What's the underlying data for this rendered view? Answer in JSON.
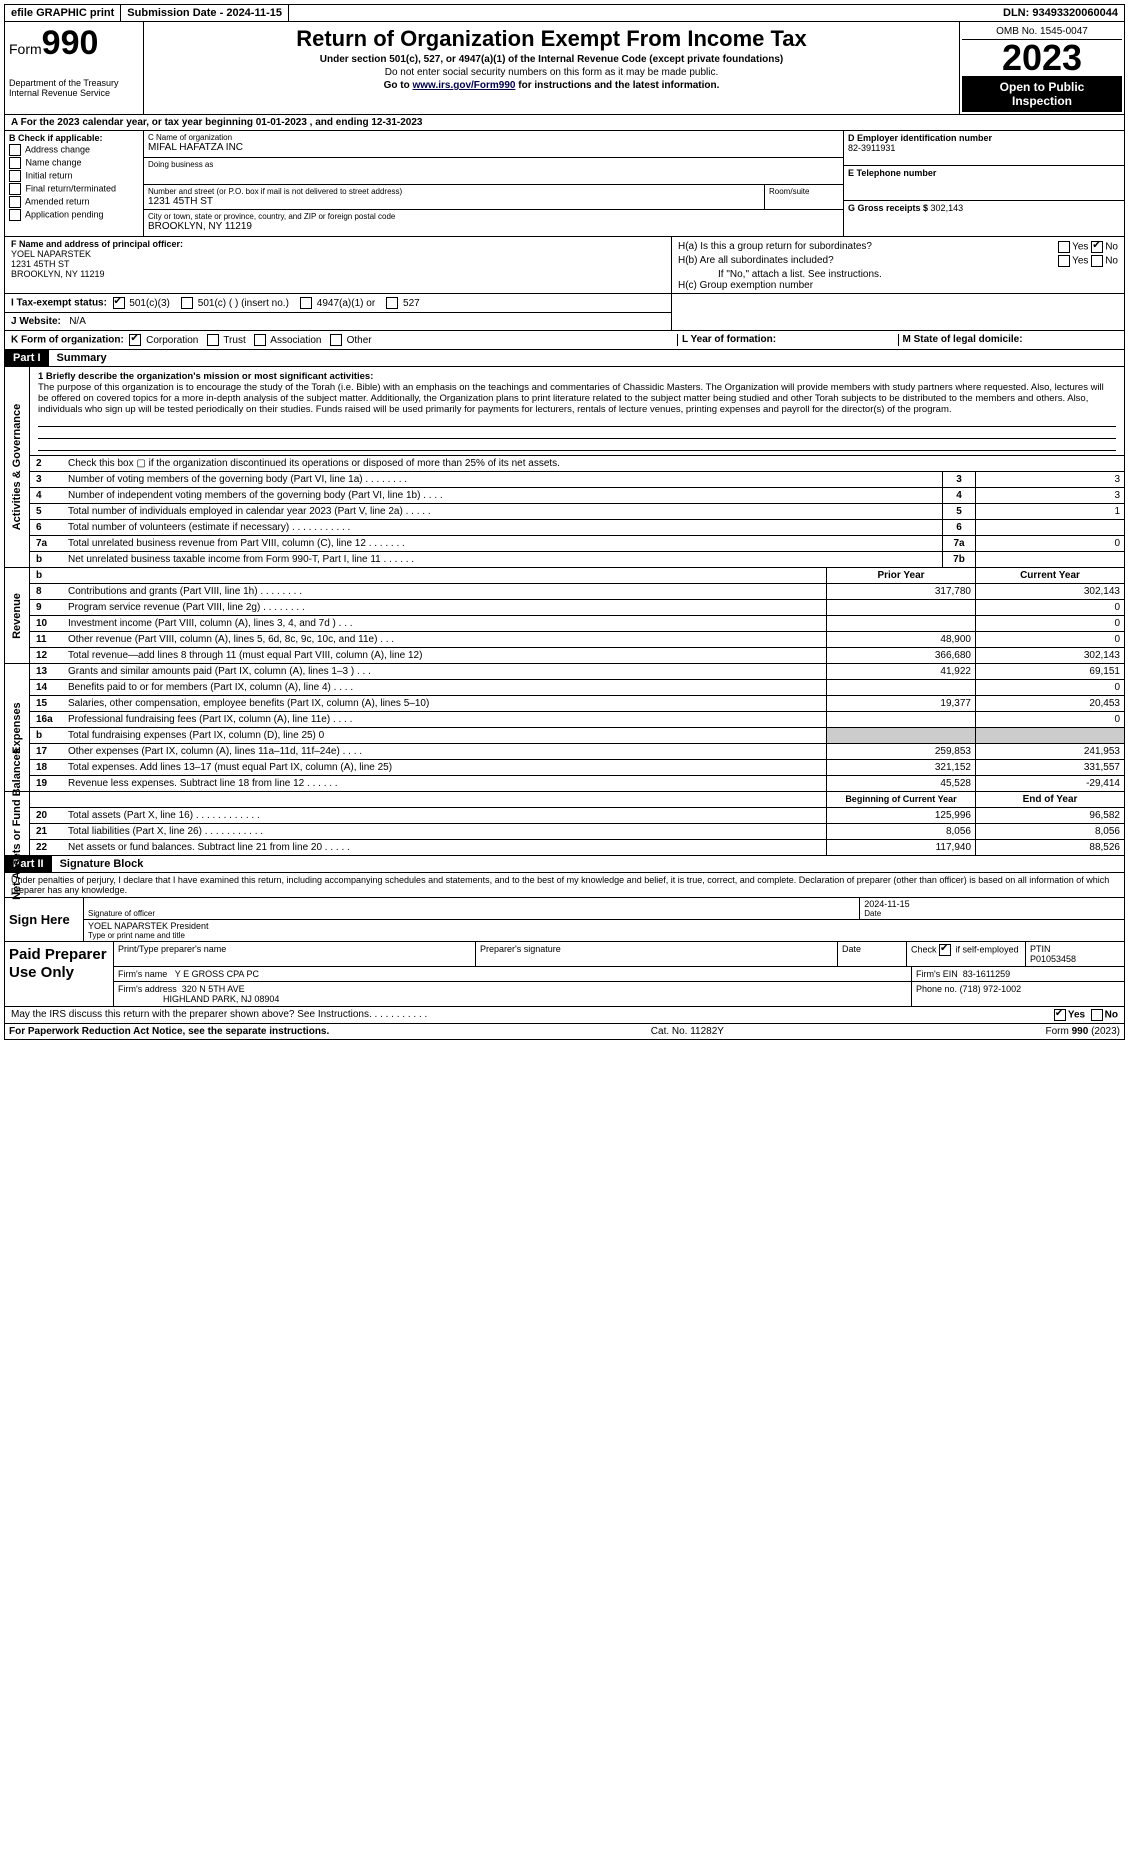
{
  "topbar": {
    "efile": "efile GRAPHIC print",
    "sub_label": "Submission Date - ",
    "sub_date": "2024-11-15",
    "dln_label": "DLN: ",
    "dln": "93493320060044"
  },
  "header": {
    "form_word": "Form",
    "form_num": "990",
    "title": "Return of Organization Exempt From Income Tax",
    "sub1": "Under section 501(c), 527, or 4947(a)(1) of the Internal Revenue Code (except private foundations)",
    "sub2": "Do not enter social security numbers on this form as it may be made public.",
    "sub3_pre": "Go to ",
    "sub3_link": "www.irs.gov/Form990",
    "sub3_post": " for instructions and the latest information.",
    "dept": "Department of the Treasury Internal Revenue Service",
    "omb": "OMB No. 1545-0047",
    "year": "2023",
    "open1": "Open to Public",
    "open2": "Inspection"
  },
  "rowA": {
    "pre": "A For the 2023 calendar year, or tax year beginning ",
    "start": "01-01-2023",
    "mid": " , and ending ",
    "end": "12-31-2023"
  },
  "B": {
    "hd": "B Check if applicable:",
    "opts": [
      "Address change",
      "Name change",
      "Initial return",
      "Final return/terminated",
      "Amended return",
      "Application pending"
    ]
  },
  "C": {
    "name_lab": "C Name of organization",
    "name": "MIFAL HAFATZA INC",
    "dba_lab": "Doing business as",
    "dba": "",
    "street_lab": "Number and street (or P.O. box if mail is not delivered to street address)",
    "street": "1231 45TH ST",
    "room_lab": "Room/suite",
    "city_lab": "City or town, state or province, country, and ZIP or foreign postal code",
    "city": "BROOKLYN, NY  11219"
  },
  "D": {
    "lab": "D Employer identification number",
    "val": "82-3911931"
  },
  "E": {
    "lab": "E Telephone number",
    "val": ""
  },
  "G": {
    "lab": "G Gross receipts $ ",
    "val": "302,143"
  },
  "F": {
    "lab": "F  Name and address of principal officer:",
    "name": "YOEL NAPARSTEK",
    "street": "1231 45TH ST",
    "city": "BROOKLYN, NY  11219"
  },
  "H": {
    "a": "H(a)  Is this a group return for subordinates?",
    "b": "H(b)  Are all subordinates included?",
    "bnote": "If \"No,\" attach a list. See instructions.",
    "c": "H(c)  Group exemption number",
    "yes": "Yes",
    "no": "No",
    "a_no_checked": true
  },
  "I": {
    "lab": "I  Tax-exempt status:",
    "opts": [
      "501(c)(3)",
      "501(c) (  ) (insert no.)",
      "4947(a)(1) or",
      "527"
    ],
    "checked": 0
  },
  "J": {
    "lab": "J  Website:",
    "val": "N/A"
  },
  "K": {
    "lab": "K Form of organization:",
    "opts": [
      "Corporation",
      "Trust",
      "Association",
      "Other"
    ],
    "checked": 0
  },
  "L": "L Year of formation:",
  "M": "M State of legal domicile:",
  "part1": {
    "tag": "Part I",
    "title": "Summary"
  },
  "mission": {
    "lead": "1   Briefly describe the organization's mission or most significant activities:",
    "text": "The purpose of this organization is to encourage the study of the Torah (i.e. Bible) with an emphasis on the teachings and commentaries of Chassidic Masters. The Organization will provide members with study partners where requested. Also, lectures will be offered on covered topics for a more in-depth analysis of the subject matter. Additionally, the Organization plans to print literature related to the subject matter being studied and other Torah subjects to be distributed to the members and others. Also, individuals who sign up will be tested periodically on their studies. Funds raised will be used primarily for payments for lecturers, rentals of lecture venues, printing expenses and payroll for the director(s) of the program."
  },
  "gov_lines": [
    {
      "n": "2",
      "t": "Check this box  ▢  if the organization discontinued its operations or disposed of more than 25% of its net assets."
    },
    {
      "n": "3",
      "t": "Number of voting members of the governing body (Part VI, line 1a)   .   .   .   .   .   .   .   .",
      "box": "3",
      "v": "3"
    },
    {
      "n": "4",
      "t": "Number of independent voting members of the governing body (Part VI, line 1b)   .   .   .   .",
      "box": "4",
      "v": "3"
    },
    {
      "n": "5",
      "t": "Total number of individuals employed in calendar year 2023 (Part V, line 2a)   .   .   .   .   .",
      "box": "5",
      "v": "1"
    },
    {
      "n": "6",
      "t": "Total number of volunteers (estimate if necessary)   .   .   .   .   .   .   .   .   .   .   .",
      "box": "6",
      "v": ""
    },
    {
      "n": "7a",
      "t": "Total unrelated business revenue from Part VIII, column (C), line 12   .   .   .   .   .   .   .",
      "box": "7a",
      "v": "0"
    },
    {
      "n": "b",
      "t": "Net unrelated business taxable income from Form 990-T, Part I, line 11   .   .   .   .   .   .",
      "box": "7b",
      "v": ""
    }
  ],
  "rev_hdr": {
    "prior": "Prior Year",
    "curr": "Current Year"
  },
  "rev_lines": [
    {
      "n": "8",
      "t": "Contributions and grants (Part VIII, line 1h)   .   .   .   .   .   .   .   .",
      "p": "317,780",
      "c": "302,143"
    },
    {
      "n": "9",
      "t": "Program service revenue (Part VIII, line 2g)   .   .   .   .   .   .   .   .",
      "p": "",
      "c": "0"
    },
    {
      "n": "10",
      "t": "Investment income (Part VIII, column (A), lines 3, 4, and 7d )   .   .   .",
      "p": "",
      "c": "0"
    },
    {
      "n": "11",
      "t": "Other revenue (Part VIII, column (A), lines 5, 6d, 8c, 9c, 10c, and 11e)   .   .   .",
      "p": "48,900",
      "c": "0"
    },
    {
      "n": "12",
      "t": "Total revenue—add lines 8 through 11 (must equal Part VIII, column (A), line 12)",
      "p": "366,680",
      "c": "302,143"
    }
  ],
  "exp_lines": [
    {
      "n": "13",
      "t": "Grants and similar amounts paid (Part IX, column (A), lines 1–3 )   .   .   .",
      "p": "41,922",
      "c": "69,151"
    },
    {
      "n": "14",
      "t": "Benefits paid to or for members (Part IX, column (A), line 4)   .   .   .   .",
      "p": "",
      "c": "0"
    },
    {
      "n": "15",
      "t": "Salaries, other compensation, employee benefits (Part IX, column (A), lines 5–10)",
      "p": "19,377",
      "c": "20,453"
    },
    {
      "n": "16a",
      "t": "Professional fundraising fees (Part IX, column (A), line 11e)   .   .   .   .",
      "p": "",
      "c": "0"
    },
    {
      "n": "b",
      "t": "Total fundraising expenses (Part IX, column (D), line 25) 0",
      "p": "grey",
      "c": "grey"
    },
    {
      "n": "17",
      "t": "Other expenses (Part IX, column (A), lines 11a–11d, 11f–24e)   .   .   .   .",
      "p": "259,853",
      "c": "241,953"
    },
    {
      "n": "18",
      "t": "Total expenses. Add lines 13–17 (must equal Part IX, column (A), line 25)",
      "p": "321,152",
      "c": "331,557"
    },
    {
      "n": "19",
      "t": "Revenue less expenses. Subtract line 18 from line 12   .   .   .   .   .   .",
      "p": "45,528",
      "c": "-29,414"
    }
  ],
  "na_hdr": {
    "prior": "Beginning of Current Year",
    "curr": "End of Year"
  },
  "na_lines": [
    {
      "n": "20",
      "t": "Total assets (Part X, line 16)   .   .   .   .   .   .   .   .   .   .   .   .",
      "p": "125,996",
      "c": "96,582"
    },
    {
      "n": "21",
      "t": "Total liabilities (Part X, line 26)   .   .   .   .   .   .   .   .   .   .   .",
      "p": "8,056",
      "c": "8,056"
    },
    {
      "n": "22",
      "t": "Net assets or fund balances. Subtract line 21 from line 20   .   .   .   .   .",
      "p": "117,940",
      "c": "88,526"
    }
  ],
  "sides": {
    "gov": "Activities & Governance",
    "rev": "Revenue",
    "exp": "Expenses",
    "na": "Net Assets or Fund Balances"
  },
  "part2": {
    "tag": "Part II",
    "title": "Signature Block"
  },
  "sig": {
    "decl": "Under penalties of perjury, I declare that I have examined this return, including accompanying schedules and statements, and to the best of my knowledge and belief, it is true, correct, and complete. Declaration of preparer (other than officer) is based on all information of which preparer has any knowledge.",
    "sign_here": "Sign Here",
    "sig_lab": "Signature of officer",
    "date_lab": "Date",
    "date": "2024-11-15",
    "name": "YOEL NAPARSTEK President",
    "name_lab": "Type or print name and title"
  },
  "prep": {
    "title": "Paid Preparer Use Only",
    "p1": "Print/Type preparer's name",
    "p2": "Preparer's signature",
    "p3": "Date",
    "p4a": "Check",
    "p4b": "if self-employed",
    "p4_checked": true,
    "ptin_lab": "PTIN",
    "ptin": "P01053458",
    "firm_lab": "Firm's name",
    "firm": "Y E GROSS CPA PC",
    "ein_lab": "Firm's EIN",
    "ein": "83-1611259",
    "addr_lab": "Firm's address",
    "addr1": "320 N 5TH AVE",
    "addr2": "HIGHLAND PARK, NJ  08904",
    "phone_lab": "Phone no.",
    "phone": "(718) 972-1002"
  },
  "disc": {
    "q": "May the IRS discuss this return with the preparer shown above? See Instructions.   .   .   .   .   .   .   .   .   .   .",
    "yes": "Yes",
    "no": "No",
    "yes_checked": true
  },
  "footer": {
    "l": "For Paperwork Reduction Act Notice, see the separate instructions.",
    "m": "Cat. No. 11282Y",
    "r": "Form 990 (2023)"
  }
}
